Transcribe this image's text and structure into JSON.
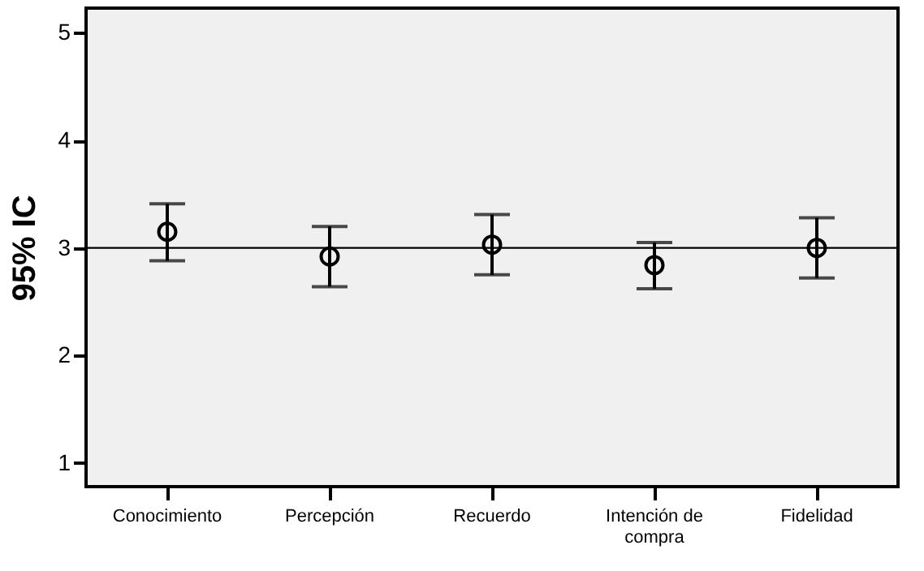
{
  "chart_data": {
    "type": "scatter",
    "ylabel": "95% IC",
    "categories": [
      "Conocimiento",
      "Percepción",
      "Recuerdo",
      "Intención de\ncompra",
      "Fidelidad"
    ],
    "values": [
      3.15,
      2.92,
      3.03,
      2.84,
      3.0
    ],
    "errors": [
      [
        2.88,
        3.41
      ],
      [
        2.64,
        3.2
      ],
      [
        2.75,
        3.31
      ],
      [
        2.62,
        3.05
      ],
      [
        2.72,
        3.28
      ]
    ],
    "color": "#000000",
    "marker": "circle",
    "grid": false,
    "ylim": [
      0.78,
      5.23
    ],
    "yticks": [
      1,
      2,
      3,
      4,
      5
    ],
    "ref_lines": [
      {
        "axis": "y",
        "value": 3,
        "color": "#000000"
      }
    ]
  }
}
